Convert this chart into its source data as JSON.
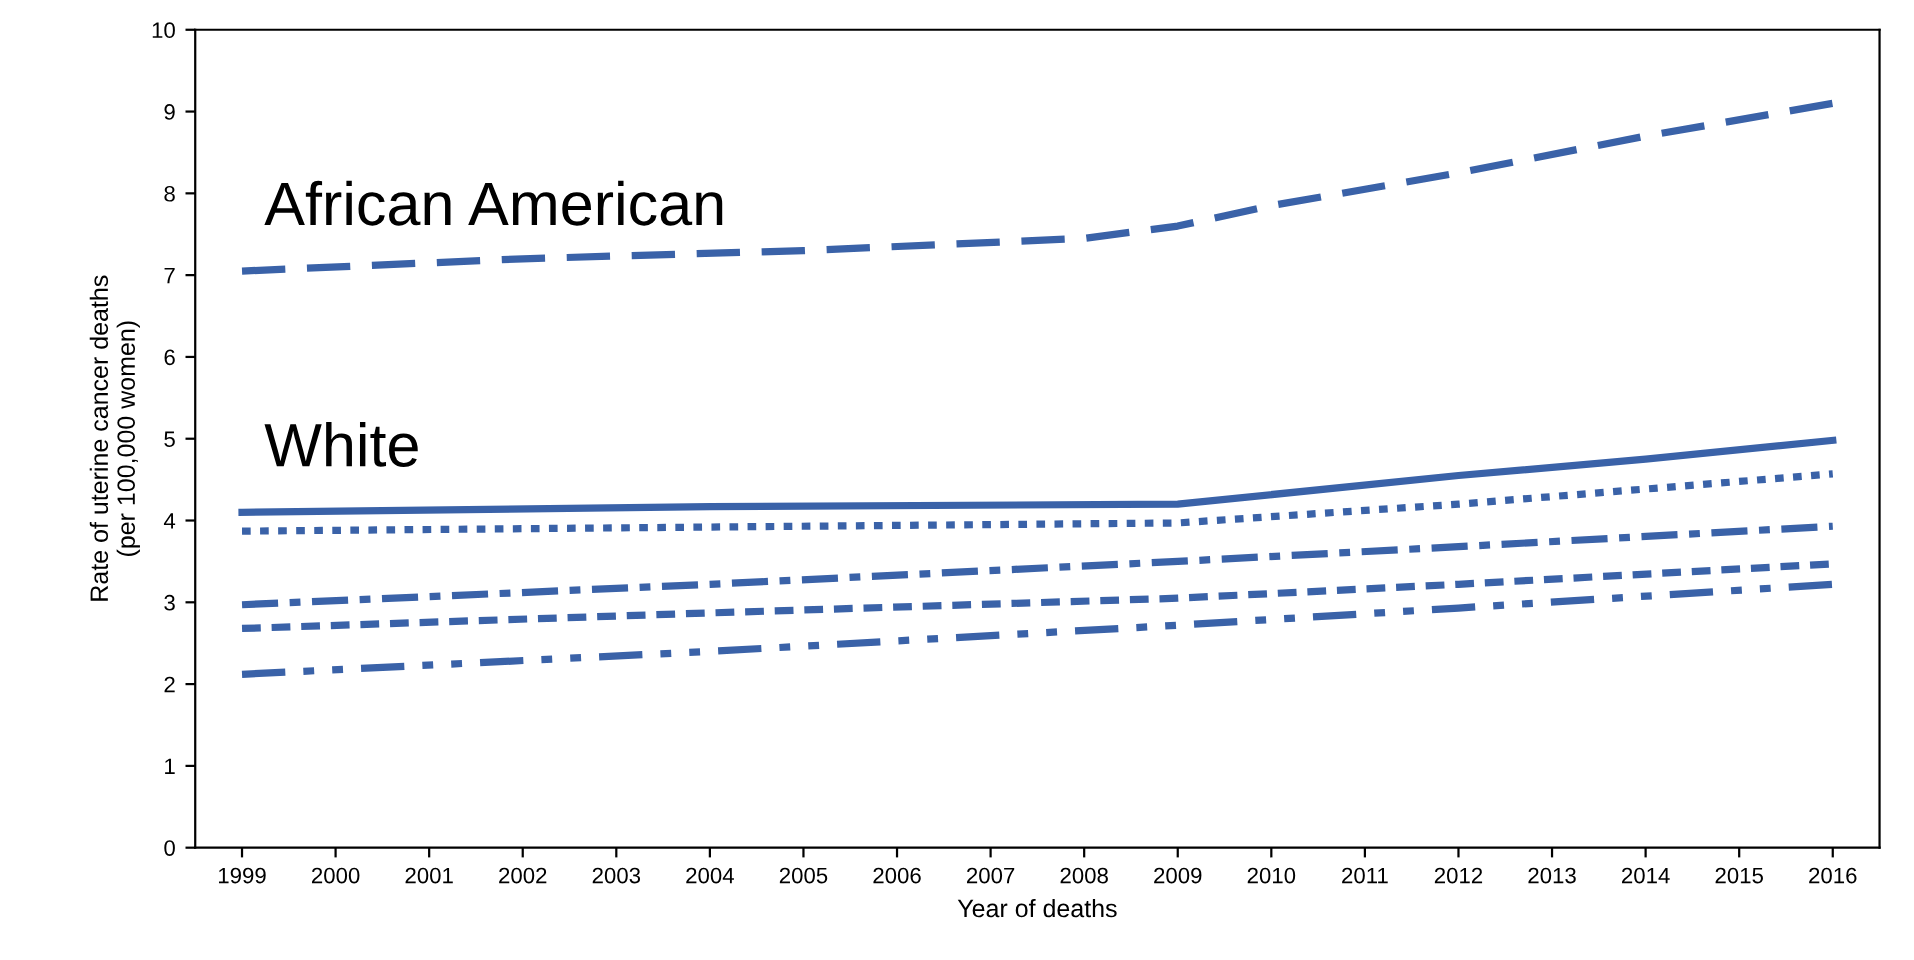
{
  "chart_data": {
    "type": "line",
    "xlabel": "Year of deaths",
    "ylabel": "Rate of uterine cancer deaths\n(per 100,000 women)",
    "xlim": [
      1998.5,
      2016.5
    ],
    "xticks": [
      1999,
      2000,
      2001,
      2002,
      2003,
      2004,
      2005,
      2006,
      2007,
      2008,
      2009,
      2010,
      2011,
      2012,
      2013,
      2014,
      2015,
      2016
    ],
    "ylim": [
      0,
      10
    ],
    "yticks": [
      0,
      1,
      2,
      3,
      4,
      5,
      6,
      7,
      8,
      9,
      10
    ],
    "grid": false,
    "legend": false,
    "marker": "none",
    "series": [
      {
        "name": "African American",
        "color": "#3a62a8",
        "line_style": "dashed",
        "x": [
          1999,
          2002,
          2005,
          2008,
          2009,
          2010,
          2012,
          2014,
          2016
        ],
        "values": [
          7.05,
          7.2,
          7.3,
          7.45,
          7.6,
          7.85,
          8.25,
          8.7,
          9.1
        ]
      },
      {
        "name": "White",
        "color": "#3a62a8",
        "line_style": "solid",
        "x": [
          1999,
          2004,
          2009,
          2012,
          2014,
          2016
        ],
        "values": [
          4.1,
          4.17,
          4.2,
          4.55,
          4.75,
          4.98
        ]
      },
      {
        "color": "#3a62a8",
        "line_style": "dotted",
        "x": [
          1999,
          2004,
          2009,
          2012,
          2016
        ],
        "values": [
          3.87,
          3.92,
          3.97,
          4.2,
          4.57
        ]
      },
      {
        "color": "#3a62a8",
        "line_style": "dashdot",
        "x": [
          1999,
          2004,
          2009,
          2012,
          2016
        ],
        "values": [
          2.97,
          3.22,
          3.5,
          3.68,
          3.93
        ]
      },
      {
        "color": "#3a62a8",
        "line_style": "dashed_short",
        "x": [
          1999,
          2004,
          2009,
          2012,
          2016
        ],
        "values": [
          2.68,
          2.87,
          3.05,
          3.22,
          3.47
        ]
      },
      {
        "color": "#3a62a8",
        "line_style": "dashdotdot",
        "x": [
          1999,
          2004,
          2009,
          2012,
          2016
        ],
        "values": [
          2.12,
          2.4,
          2.72,
          2.93,
          3.22
        ]
      }
    ]
  }
}
